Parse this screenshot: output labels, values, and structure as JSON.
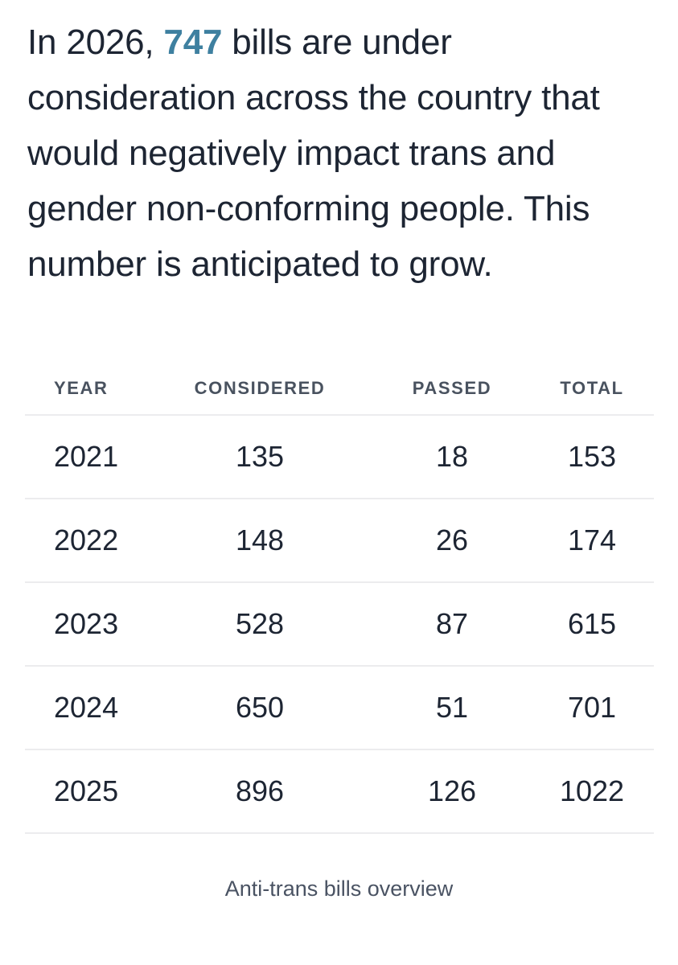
{
  "headline": {
    "line1": {
      "prefix": "In 2026, ",
      "highlight": "747",
      "suffix": " bills are under"
    },
    "line2": "consideration across the country that",
    "line3": "would negatively impact trans and",
    "line4": "gender non-conforming people. This",
    "line5": "number is anticipated to grow."
  },
  "chart_data": {
    "type": "table",
    "title": "Anti-trans bills overview",
    "columns": [
      "YEAR",
      "CONSIDERED",
      "PASSED",
      "TOTAL"
    ],
    "rows": [
      [
        "2021",
        "135",
        "18",
        "153"
      ],
      [
        "2022",
        "148",
        "26",
        "174"
      ],
      [
        "2023",
        "528",
        "87",
        "615"
      ],
      [
        "2024",
        "650",
        "51",
        "701"
      ],
      [
        "2025",
        "896",
        "126",
        "1022"
      ]
    ]
  },
  "colors": {
    "highlight": "#3e80a0",
    "text": "#1d2533",
    "header_text": "#49525f",
    "caption_text": "#4a5363",
    "divider": "#ececee",
    "background": "#ffffff"
  }
}
